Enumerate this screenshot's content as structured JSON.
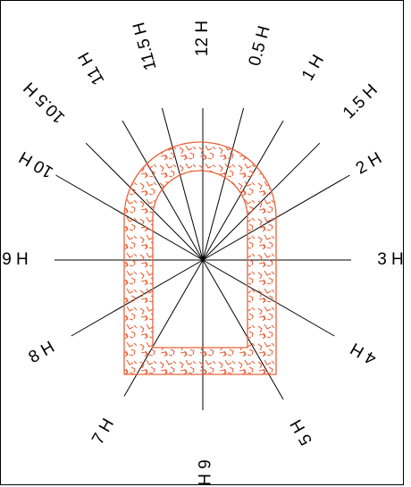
{
  "diagram": {
    "colors": {
      "lines": "#000000",
      "tunnel": "#e8643c"
    },
    "clock_labels": [
      {
        "id": "12h",
        "text": "12 H",
        "angle_deg": 0
      },
      {
        "id": "0-5h",
        "text": "0.5 H",
        "angle_deg": 15
      },
      {
        "id": "1h",
        "text": "1 H",
        "angle_deg": 30
      },
      {
        "id": "1-5h",
        "text": "1.5 H",
        "angle_deg": 45
      },
      {
        "id": "2h",
        "text": "2 H",
        "angle_deg": 60
      },
      {
        "id": "3h",
        "text": "3 H",
        "angle_deg": 90
      },
      {
        "id": "4h",
        "text": "4 H",
        "angle_deg": 120
      },
      {
        "id": "5h",
        "text": "5 H",
        "angle_deg": 150
      },
      {
        "id": "6h",
        "text": "6 H",
        "angle_deg": 180
      },
      {
        "id": "7h",
        "text": "7 H",
        "angle_deg": 210
      },
      {
        "id": "8h",
        "text": "8 H",
        "angle_deg": 240
      },
      {
        "id": "9h",
        "text": "9 H",
        "angle_deg": 270
      },
      {
        "id": "10h",
        "text": "10 H",
        "angle_deg": 300
      },
      {
        "id": "10-5h",
        "text": "10.5 H",
        "angle_deg": 315
      },
      {
        "id": "11h",
        "text": "11 H",
        "angle_deg": 330
      },
      {
        "id": "11-5h",
        "text": "11.5 H",
        "angle_deg": 345
      }
    ]
  }
}
